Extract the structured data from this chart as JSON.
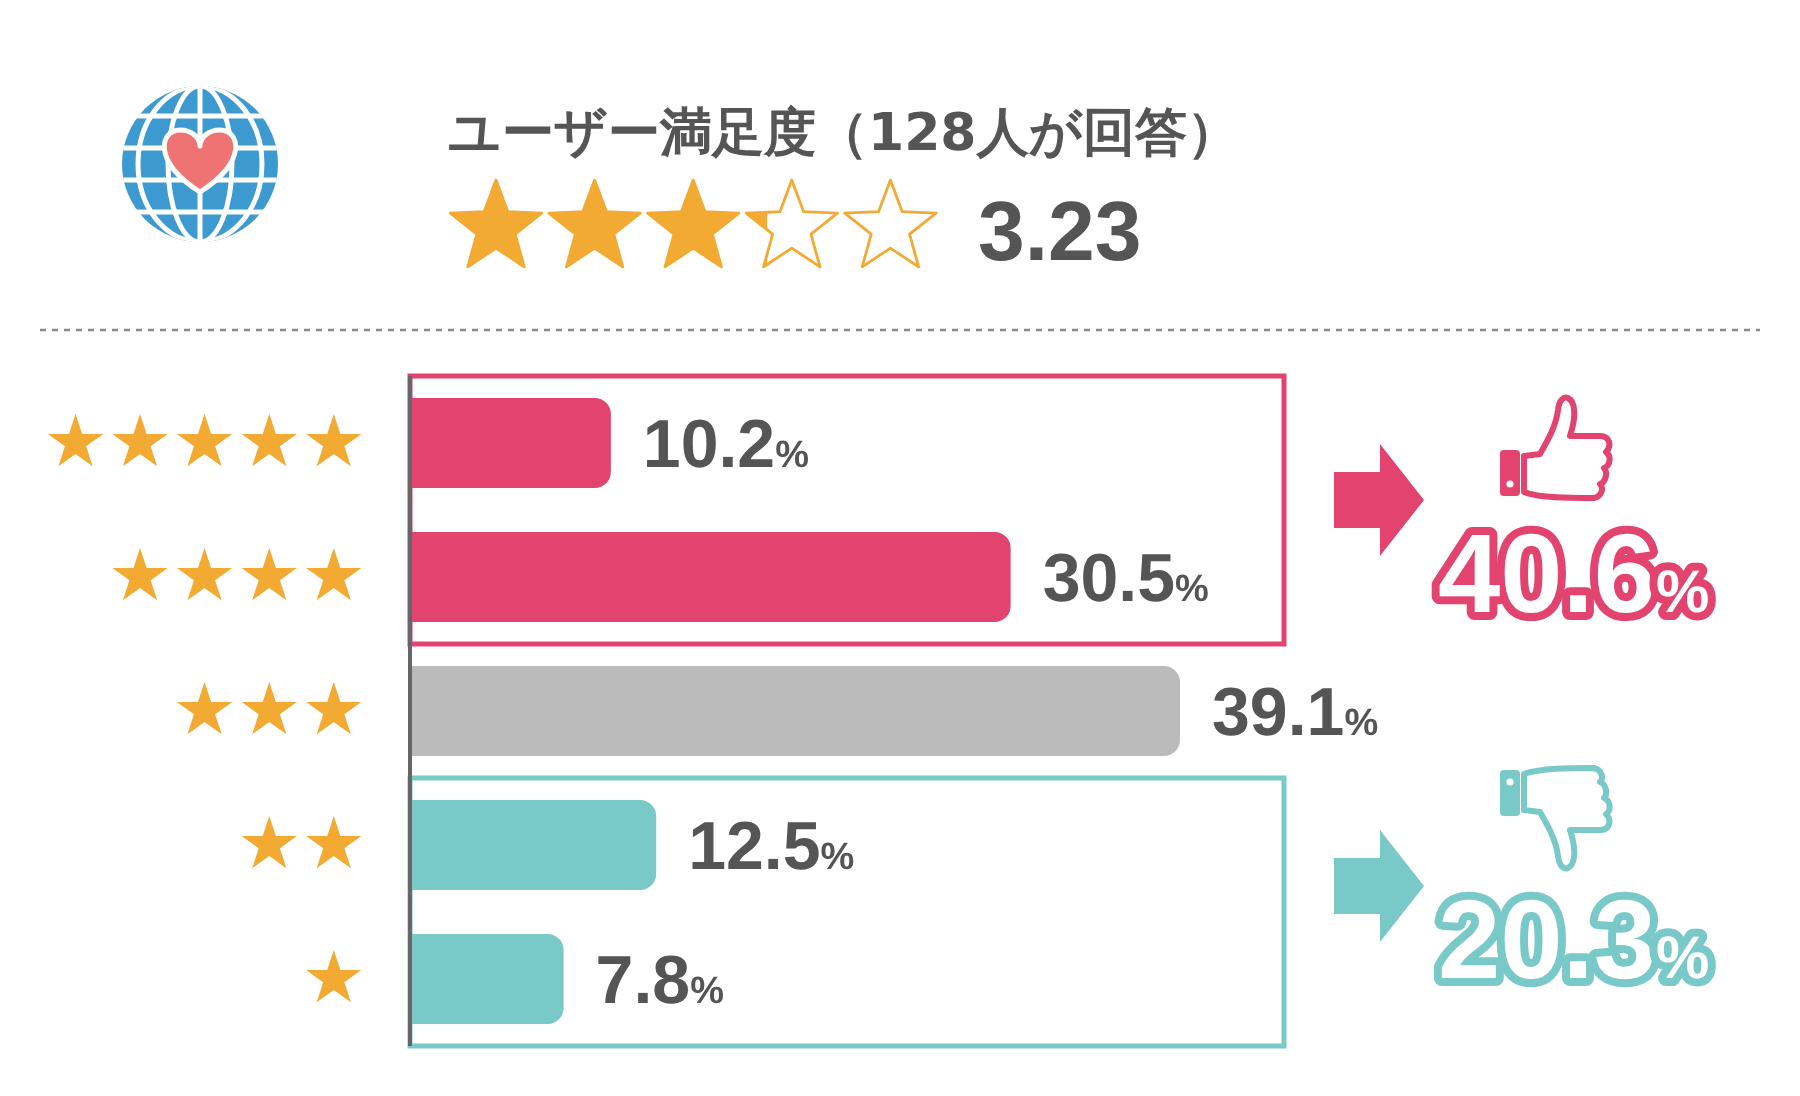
{
  "chart_data": {
    "type": "bar",
    "orientation": "horizontal",
    "title": "ユーザー満足度（128人が回答）",
    "subtitle": "3.23",
    "categories": [
      "★★★★★",
      "★★★★",
      "★★★",
      "★★",
      "★"
    ],
    "values": [
      10.2,
      30.5,
      39.1,
      12.5,
      7.8
    ],
    "colors": [
      "#e2436f",
      "#e2436f",
      "#bbbbbb",
      "#79c9c8",
      "#79c9c8"
    ],
    "value_labels": [
      "10.2%",
      "30.5%",
      "39.1%",
      "12.5%",
      "7.8%"
    ],
    "annotations": [
      "40.6%",
      "20.3%"
    ]
  }
}
